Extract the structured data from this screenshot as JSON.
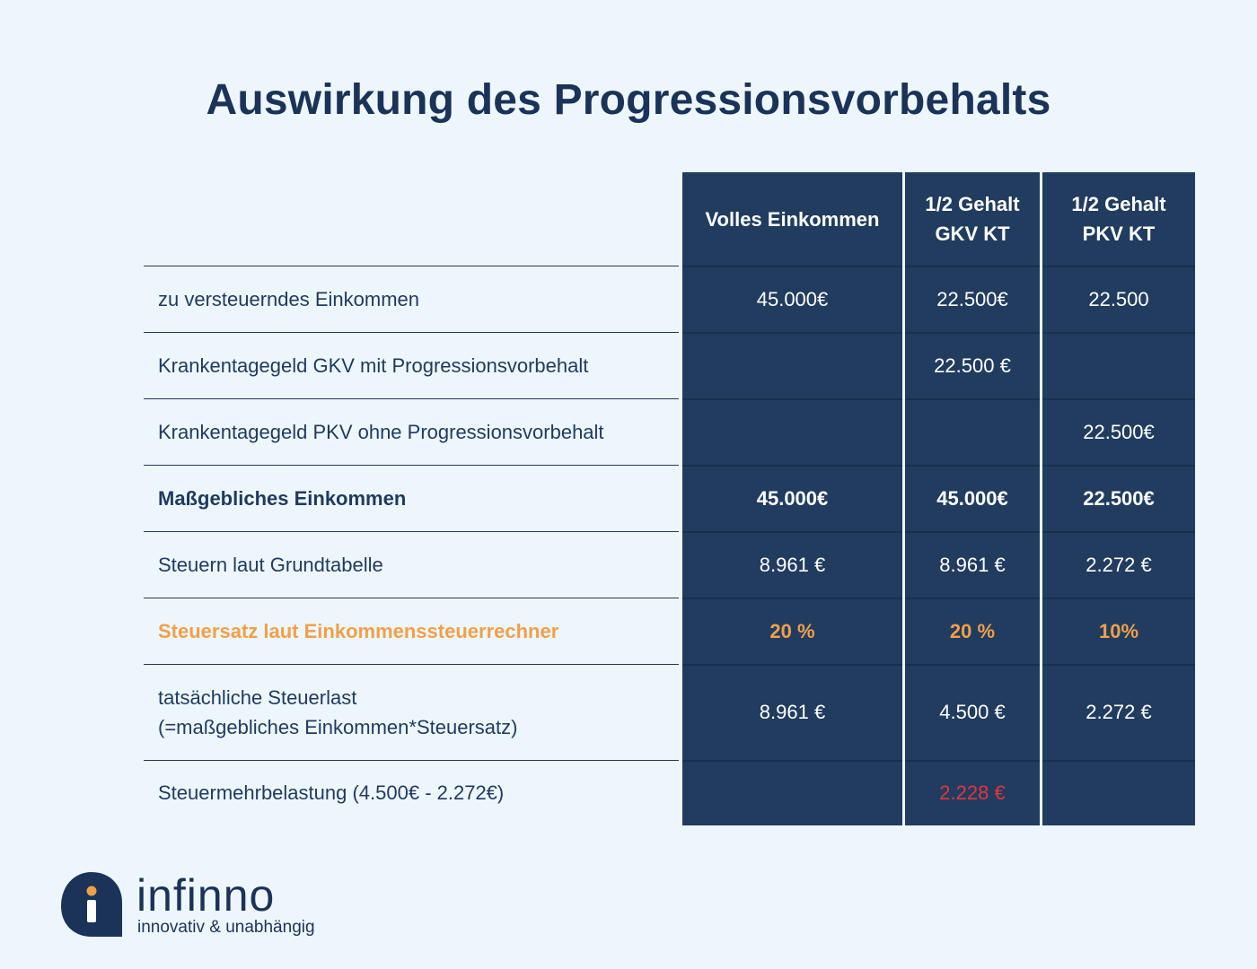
{
  "title": "Auswirkung des Progressionsvorbehalts",
  "table": {
    "columns": [
      "Volles Einkommen",
      "1/2 Gehalt\nGKV KT",
      "1/2 Gehalt\nPKV KT"
    ],
    "rows": [
      {
        "label": "zu versteuerndes Einkommen",
        "values": [
          "45.000€",
          "22.500€",
          "22.500"
        ],
        "style": "normal"
      },
      {
        "label": "Krankentagegeld GKV mit Progressionsvorbehalt",
        "values": [
          "",
          "22.500 €",
          ""
        ],
        "style": "normal"
      },
      {
        "label": "Krankentagegeld PKV ohne Progressionsvorbehalt",
        "values": [
          "",
          "",
          "22.500€"
        ],
        "style": "normal"
      },
      {
        "label": "Maßgebliches Einkommen",
        "values": [
          "45.000€",
          "45.000€",
          "22.500€"
        ],
        "style": "bold"
      },
      {
        "label": "Steuern laut Grundtabelle",
        "values": [
          "8.961 €",
          "8.961 €",
          "2.272 €"
        ],
        "style": "normal"
      },
      {
        "label": "Steuersatz laut Einkommenssteuerrechner",
        "values": [
          "20 %",
          "20 %",
          "10%"
        ],
        "style": "orange"
      },
      {
        "label": "tatsächliche Steuerlast\n(=maßgebliches Einkommen*Steuersatz)",
        "values": [
          "8.961 €",
          "4.500 €",
          "2.272 €"
        ],
        "style": "normal"
      },
      {
        "label": "Steuermehrbelastung (4.500€ - 2.272€)",
        "values": [
          "",
          "2.228 €",
          ""
        ],
        "style": "normal",
        "highlight": "red"
      }
    ]
  },
  "logo": {
    "letter": "i",
    "name": "infinno",
    "tagline": "innovativ & unabhängig"
  },
  "colors": {
    "background": "#eef6fd",
    "navy": "#213c5f",
    "title": "#1b3358",
    "accent_orange": "#f0a04b",
    "accent_red": "#e0373f"
  }
}
